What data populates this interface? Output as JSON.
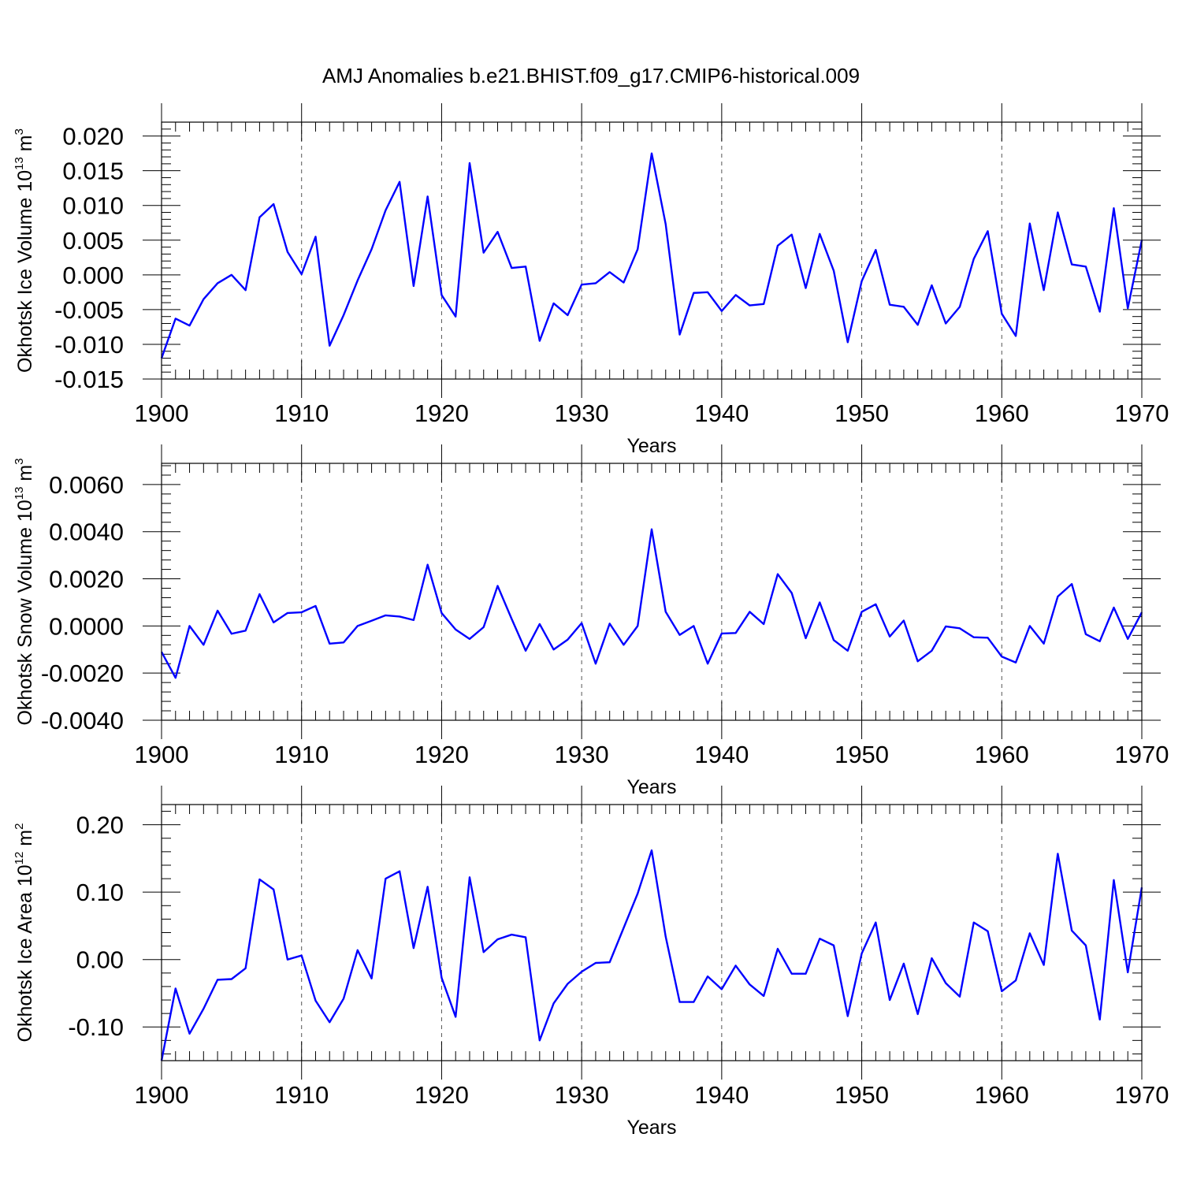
{
  "figure_title": "AMJ Anomalies b.e21.BHIST.f09_g17.CMIP6-historical.009",
  "line_color": "#0000ff",
  "chart_data": [
    {
      "type": "line",
      "ylabel": "Okhotsk Ice Volume 10",
      "ylabel_exp": "13",
      "ylabel_unit": " m",
      "ylabel_unit_exp": "3",
      "xlabel": "Years",
      "xlim": [
        1900,
        1970
      ],
      "ylim": [
        -0.015,
        0.022
      ],
      "grid": "dashed vertical lines at decades",
      "xticks": [
        1900,
        1910,
        1920,
        1930,
        1940,
        1950,
        1960,
        1970
      ],
      "xtick_labels": [
        "1900",
        "1910",
        "1920",
        "1930",
        "1940",
        "1950",
        "1960",
        "1970"
      ],
      "yticks": [
        -0.015,
        -0.01,
        -0.005,
        0.0,
        0.005,
        0.01,
        0.015,
        0.02
      ],
      "ytick_labels": [
        "-0.015",
        "-0.010",
        "-0.005",
        "0.000",
        "0.005",
        "0.010",
        "0.015",
        "0.020"
      ],
      "yminor_step": 0.001,
      "x_start": 1900,
      "values": [
        -0.012,
        -0.0063,
        -0.0073,
        -0.0035,
        -0.0012,
        0.0,
        -0.0022,
        0.0083,
        0.0102,
        0.0033,
        0.0001,
        0.0055,
        -0.0102,
        -0.0058,
        -0.0008,
        0.0037,
        0.0093,
        0.0134,
        -0.0016,
        0.0113,
        -0.0029,
        -0.006,
        0.0161,
        0.0032,
        0.0062,
        0.001,
        0.0012,
        -0.0095,
        -0.0041,
        -0.0058,
        -0.0014,
        -0.0012,
        0.0004,
        -0.0011,
        0.0037,
        0.0175,
        0.0073,
        -0.0086,
        -0.0026,
        -0.0025,
        -0.0052,
        -0.0029,
        -0.0044,
        -0.0042,
        0.0042,
        0.0058,
        -0.0019,
        0.0059,
        0.0006,
        -0.0097,
        -0.0009,
        0.0036,
        -0.0043,
        -0.0046,
        -0.0072,
        -0.0015,
        -0.007,
        -0.0046,
        0.0023,
        0.0063,
        -0.0056,
        -0.0088,
        0.0074,
        -0.0022,
        0.009,
        0.0015,
        0.0012,
        -0.0053,
        0.0096,
        -0.0048,
        0.005
      ]
    },
    {
      "type": "line",
      "ylabel": "Okhotsk Snow Volume 10",
      "ylabel_exp": "13",
      "ylabel_unit": " m",
      "ylabel_unit_exp": "3",
      "xlabel": "Years",
      "xlim": [
        1900,
        1970
      ],
      "ylim": [
        -0.004,
        0.0069
      ],
      "grid": "dashed vertical lines at decades",
      "xticks": [
        1900,
        1910,
        1920,
        1930,
        1940,
        1950,
        1960,
        1970
      ],
      "xtick_labels": [
        "1900",
        "1910",
        "1920",
        "1930",
        "1940",
        "1950",
        "1960",
        "1970"
      ],
      "yticks": [
        -0.004,
        -0.002,
        0.0,
        0.002,
        0.004,
        0.006
      ],
      "ytick_labels": [
        "-0.0040",
        "-0.0020",
        "0.0000",
        "0.0020",
        "0.0040",
        "0.0060"
      ],
      "yminor_step": 0.0004,
      "x_start": 1900,
      "values": [
        -0.0011,
        -0.0022,
        0.0,
        -0.0008,
        0.00065,
        -0.00033,
        -0.0002,
        0.00135,
        0.00015,
        0.00055,
        0.00058,
        0.00085,
        -0.00075,
        -0.0007,
        0.0,
        0.00022,
        0.00045,
        0.0004,
        0.00025,
        0.0026,
        0.00055,
        -0.00015,
        -0.00055,
        -5e-05,
        0.0017,
        0.0003,
        -0.00105,
        8e-05,
        -0.001,
        -0.00058,
        0.00012,
        -0.0016,
        0.0001,
        -0.0008,
        0.0,
        0.0041,
        0.0006,
        -0.00038,
        0.0,
        -0.0016,
        -0.00032,
        -0.0003,
        0.0006,
        8e-05,
        0.0022,
        0.0014,
        -0.00052,
        0.001,
        -0.0006,
        -0.00105,
        0.0006,
        0.00092,
        -0.00045,
        0.00023,
        -0.0015,
        -0.00105,
        -2e-05,
        -0.0001,
        -0.00048,
        -0.0005,
        -0.0013,
        -0.00155,
        0.0,
        -0.00075,
        0.00125,
        0.00178,
        -0.00035,
        -0.00065,
        0.00078,
        -0.00055,
        0.00058
      ]
    },
    {
      "type": "line",
      "ylabel": "Okhotsk Ice Area 10",
      "ylabel_exp": "12",
      "ylabel_unit": " m",
      "ylabel_unit_exp": "2",
      "xlabel": "Years",
      "xlim": [
        1900,
        1970
      ],
      "ylim": [
        -0.15,
        0.23
      ],
      "grid": "dashed vertical lines at decades",
      "xticks": [
        1900,
        1910,
        1920,
        1930,
        1940,
        1950,
        1960,
        1970
      ],
      "xtick_labels": [
        "1900",
        "1910",
        "1920",
        "1930",
        "1940",
        "1950",
        "1960",
        "1970"
      ],
      "yticks": [
        -0.1,
        0.0,
        0.1,
        0.2
      ],
      "ytick_labels": [
        "-0.10",
        "0.00",
        "0.10",
        "0.20"
      ],
      "yminor_step": 0.02,
      "x_start": 1900,
      "values": [
        -0.15,
        -0.043,
        -0.11,
        -0.073,
        -0.03,
        -0.029,
        -0.013,
        0.119,
        0.104,
        0.0,
        0.006,
        -0.061,
        -0.093,
        -0.058,
        0.014,
        -0.028,
        0.12,
        0.131,
        0.017,
        0.108,
        -0.027,
        -0.085,
        0.122,
        0.011,
        0.03,
        0.037,
        0.033,
        -0.12,
        -0.065,
        -0.036,
        -0.018,
        -0.005,
        -0.004,
        0.047,
        0.098,
        0.162,
        0.034,
        -0.063,
        -0.063,
        -0.025,
        -0.044,
        -0.009,
        -0.037,
        -0.054,
        0.016,
        -0.021,
        -0.021,
        0.031,
        0.021,
        -0.084,
        0.009,
        0.055,
        -0.06,
        -0.006,
        -0.081,
        0.002,
        -0.035,
        -0.055,
        0.055,
        0.042,
        -0.047,
        -0.031,
        0.039,
        -0.008,
        0.157,
        0.043,
        0.021,
        -0.089,
        0.118,
        -0.019,
        0.107
      ]
    }
  ]
}
